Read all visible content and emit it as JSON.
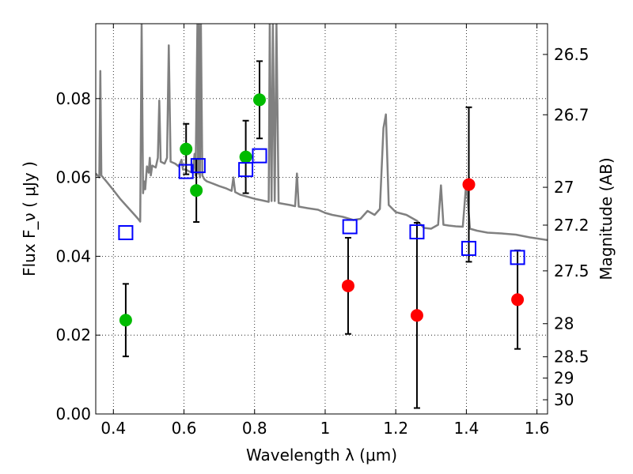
{
  "chart_data": {
    "type": "scatter",
    "title": "",
    "xlabel": "Wavelength  λ (μm)",
    "ylabel": "Flux  F_ν  ( μJy )",
    "ylabel_right": "Magnitude (AB)",
    "xlim": [
      0.35,
      1.63
    ],
    "ylim": [
      0.0,
      0.099
    ],
    "grid": true,
    "x_ticks": [
      0.4,
      0.6,
      0.8,
      1.0,
      1.2,
      1.4,
      1.6
    ],
    "x_tick_labels": [
      "0.4",
      "0.6",
      "0.8",
      "1",
      "1.2",
      "1.4",
      "1.6"
    ],
    "y_ticks": [
      0.0,
      0.02,
      0.04,
      0.06,
      0.08
    ],
    "y_tick_labels": [
      "0.00",
      "0.02",
      "0.04",
      "0.06",
      "0.08"
    ],
    "right_ticks": [
      {
        "label": "26.5",
        "flux": 0.0912
      },
      {
        "label": "26.7",
        "flux": 0.0759
      },
      {
        "label": "27",
        "flux": 0.0575
      },
      {
        "label": "27.2",
        "flux": 0.0479
      },
      {
        "label": "27.5",
        "flux": 0.0363
      },
      {
        "label": "28",
        "flux": 0.0229
      },
      {
        "label": "28.5",
        "flux": 0.0145
      },
      {
        "label": "29",
        "flux": 0.0091
      },
      {
        "label": "30",
        "flux": 0.0036
      }
    ],
    "series": [
      {
        "kind": "detections",
        "marker": "circle",
        "color": "#00bb00",
        "points": [
          {
            "x": 0.435,
            "y": 0.0238,
            "err": 0.0092
          },
          {
            "x": 0.606,
            "y": 0.0672,
            "err": 0.0064
          },
          {
            "x": 0.635,
            "y": 0.0567,
            "err": 0.008
          },
          {
            "x": 0.775,
            "y": 0.0652,
            "err": 0.0092
          },
          {
            "x": 0.814,
            "y": 0.0797,
            "err": 0.0098
          }
        ]
      },
      {
        "kind": "detections",
        "marker": "circle",
        "color": "#ff0000",
        "points": [
          {
            "x": 1.065,
            "y": 0.0325,
            "err": 0.0122
          },
          {
            "x": 1.26,
            "y": 0.025,
            "err": 0.0235
          },
          {
            "x": 1.407,
            "y": 0.0582,
            "err": 0.0196
          },
          {
            "x": 1.545,
            "y": 0.029,
            "err": 0.0125
          }
        ]
      },
      {
        "kind": "model photometry",
        "marker": "square",
        "color": "#0000ff",
        "points": [
          {
            "x": 0.435,
            "y": 0.046
          },
          {
            "x": 0.606,
            "y": 0.0615
          },
          {
            "x": 0.64,
            "y": 0.063
          },
          {
            "x": 0.775,
            "y": 0.062
          },
          {
            "x": 0.814,
            "y": 0.0655
          },
          {
            "x": 1.07,
            "y": 0.0475
          },
          {
            "x": 1.26,
            "y": 0.0462
          },
          {
            "x": 1.407,
            "y": 0.042
          },
          {
            "x": 1.545,
            "y": 0.0397
          }
        ]
      },
      {
        "kind": "model spectrum",
        "marker": "line",
        "color": "#808080",
        "points": [
          {
            "x": 0.35,
            "y": 0.061
          },
          {
            "x": 0.36,
            "y": 0.06
          },
          {
            "x": 0.363,
            "y": 0.087
          },
          {
            "x": 0.366,
            "y": 0.0605
          },
          {
            "x": 0.38,
            "y": 0.059
          },
          {
            "x": 0.4,
            "y": 0.0568
          },
          {
            "x": 0.42,
            "y": 0.0545
          },
          {
            "x": 0.44,
            "y": 0.0525
          },
          {
            "x": 0.46,
            "y": 0.0505
          },
          {
            "x": 0.47,
            "y": 0.0495
          },
          {
            "x": 0.476,
            "y": 0.0488
          },
          {
            "x": 0.48,
            "y": 0.099
          },
          {
            "x": 0.484,
            "y": 0.056
          },
          {
            "x": 0.487,
            "y": 0.059
          },
          {
            "x": 0.49,
            "y": 0.057
          },
          {
            "x": 0.495,
            "y": 0.0628
          },
          {
            "x": 0.5,
            "y": 0.0612
          },
          {
            "x": 0.503,
            "y": 0.065
          },
          {
            "x": 0.506,
            "y": 0.0605
          },
          {
            "x": 0.51,
            "y": 0.063
          },
          {
            "x": 0.52,
            "y": 0.0625
          },
          {
            "x": 0.526,
            "y": 0.065
          },
          {
            "x": 0.53,
            "y": 0.0795
          },
          {
            "x": 0.534,
            "y": 0.064
          },
          {
            "x": 0.545,
            "y": 0.0635
          },
          {
            "x": 0.552,
            "y": 0.065
          },
          {
            "x": 0.557,
            "y": 0.0935
          },
          {
            "x": 0.562,
            "y": 0.064
          },
          {
            "x": 0.575,
            "y": 0.0635
          },
          {
            "x": 0.585,
            "y": 0.0628
          },
          {
            "x": 0.593,
            "y": 0.0645
          },
          {
            "x": 0.597,
            "y": 0.062
          },
          {
            "x": 0.605,
            "y": 0.062
          },
          {
            "x": 0.615,
            "y": 0.0615
          },
          {
            "x": 0.625,
            "y": 0.0612
          },
          {
            "x": 0.63,
            "y": 0.066
          },
          {
            "x": 0.633,
            "y": 0.0605
          },
          {
            "x": 0.638,
            "y": 0.099
          },
          {
            "x": 0.64,
            "y": 0.061
          },
          {
            "x": 0.642,
            "y": 0.099
          },
          {
            "x": 0.645,
            "y": 0.06
          },
          {
            "x": 0.648,
            "y": 0.099
          },
          {
            "x": 0.652,
            "y": 0.0605
          },
          {
            "x": 0.658,
            "y": 0.0595
          },
          {
            "x": 0.665,
            "y": 0.059
          },
          {
            "x": 0.68,
            "y": 0.0585
          },
          {
            "x": 0.7,
            "y": 0.0578
          },
          {
            "x": 0.72,
            "y": 0.0572
          },
          {
            "x": 0.735,
            "y": 0.0566
          },
          {
            "x": 0.74,
            "y": 0.06
          },
          {
            "x": 0.745,
            "y": 0.0563
          },
          {
            "x": 0.76,
            "y": 0.0556
          },
          {
            "x": 0.78,
            "y": 0.0551
          },
          {
            "x": 0.8,
            "y": 0.0546
          },
          {
            "x": 0.82,
            "y": 0.0542
          },
          {
            "x": 0.84,
            "y": 0.0538
          },
          {
            "x": 0.843,
            "y": 0.099
          },
          {
            "x": 0.848,
            "y": 0.054
          },
          {
            "x": 0.852,
            "y": 0.099
          },
          {
            "x": 0.857,
            "y": 0.054
          },
          {
            "x": 0.862,
            "y": 0.099
          },
          {
            "x": 0.868,
            "y": 0.0535
          },
          {
            "x": 0.9,
            "y": 0.053
          },
          {
            "x": 0.915,
            "y": 0.0527
          },
          {
            "x": 0.92,
            "y": 0.061
          },
          {
            "x": 0.925,
            "y": 0.0526
          },
          {
            "x": 0.95,
            "y": 0.0522
          },
          {
            "x": 0.98,
            "y": 0.0518
          },
          {
            "x": 1.0,
            "y": 0.051
          },
          {
            "x": 1.02,
            "y": 0.0505
          },
          {
            "x": 1.05,
            "y": 0.05
          },
          {
            "x": 1.08,
            "y": 0.0492
          },
          {
            "x": 1.1,
            "y": 0.0495
          },
          {
            "x": 1.12,
            "y": 0.0515
          },
          {
            "x": 1.14,
            "y": 0.0505
          },
          {
            "x": 1.155,
            "y": 0.052
          },
          {
            "x": 1.165,
            "y": 0.0725
          },
          {
            "x": 1.172,
            "y": 0.076
          },
          {
            "x": 1.18,
            "y": 0.053
          },
          {
            "x": 1.2,
            "y": 0.0512
          },
          {
            "x": 1.23,
            "y": 0.0505
          },
          {
            "x": 1.26,
            "y": 0.049
          },
          {
            "x": 1.28,
            "y": 0.0472
          },
          {
            "x": 1.3,
            "y": 0.047
          },
          {
            "x": 1.32,
            "y": 0.048
          },
          {
            "x": 1.328,
            "y": 0.058
          },
          {
            "x": 1.335,
            "y": 0.048
          },
          {
            "x": 1.35,
            "y": 0.0478
          },
          {
            "x": 1.37,
            "y": 0.0476
          },
          {
            "x": 1.39,
            "y": 0.0475
          },
          {
            "x": 1.4,
            "y": 0.059
          },
          {
            "x": 1.41,
            "y": 0.047
          },
          {
            "x": 1.43,
            "y": 0.0465
          },
          {
            "x": 1.46,
            "y": 0.046
          },
          {
            "x": 1.5,
            "y": 0.0458
          },
          {
            "x": 1.54,
            "y": 0.0455
          },
          {
            "x": 1.58,
            "y": 0.0448
          },
          {
            "x": 1.63,
            "y": 0.0441
          }
        ]
      }
    ]
  }
}
